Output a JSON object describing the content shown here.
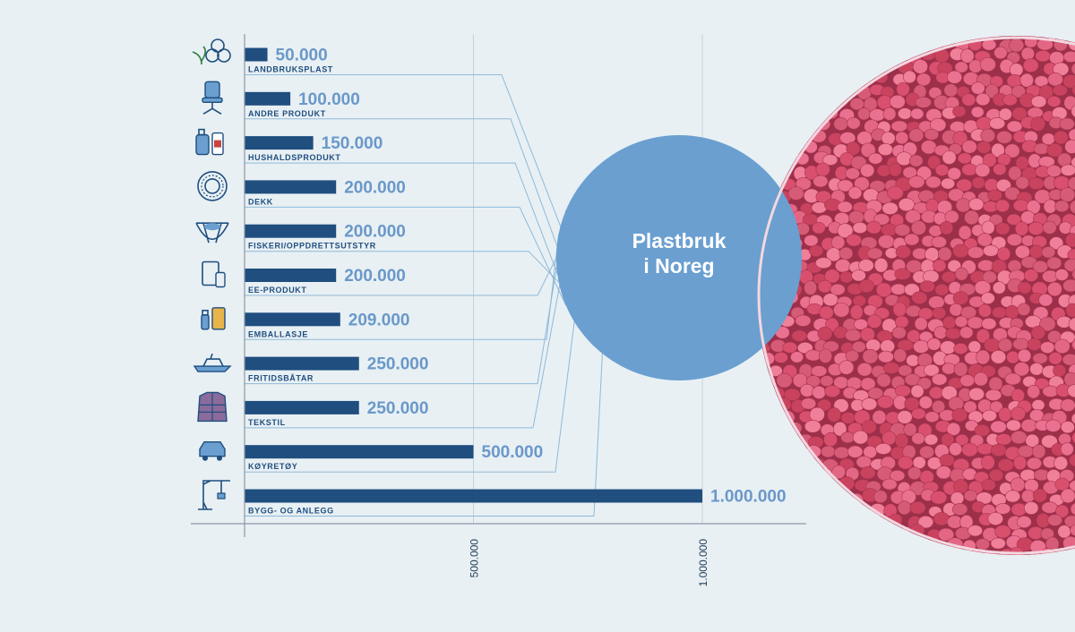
{
  "center_label": {
    "line1": "Plastbruk",
    "line2": "i Noreg"
  },
  "colors": {
    "background": "#e8f0f4",
    "bar": "#1f4e7f",
    "value_text": "#6a98c9",
    "category_text": "#1f4e7f",
    "circle": "#6a9fd0",
    "circle_text": "#ffffff",
    "pellets": "#dc5a78",
    "gridline": "#c3d2dd",
    "connector": "#8fb9d8",
    "axis": "#8a98a4"
  },
  "chart_data": {
    "type": "bar",
    "orientation": "horizontal",
    "categories": [
      "LANDBRUKSPLAST",
      "ANDRE PRODUKT",
      "HUSHALDSPRODUKT",
      "DEKK",
      "FISKERI/OPPDRETTSUTSTYR",
      "EE-PRODUKT",
      "EMBALLASJE",
      "FRITIDSBÅTAR",
      "TEKSTIL",
      "KØYRETØY",
      "BYGG- OG ANLEGG"
    ],
    "values": [
      50000,
      100000,
      150000,
      200000,
      200000,
      200000,
      209000,
      250000,
      250000,
      500000,
      1000000
    ],
    "value_labels": [
      "50.000",
      "100.000",
      "150.000",
      "200.000",
      "200.000",
      "200.000",
      "209.000",
      "250.000",
      "250.000",
      "500.000",
      "1.000.000"
    ],
    "icons": [
      "sprout-pellets-icon",
      "office-chair-icon",
      "detergent-bottles-icon",
      "tire-icon",
      "fishing-net-icon",
      "tablet-phone-icon",
      "packaging-icon",
      "boat-icon",
      "jacket-icon",
      "car-icon",
      "construction-crane-icon"
    ],
    "xticks": [
      500000,
      1000000
    ],
    "xtick_labels": [
      "500.000",
      "1.000.000"
    ],
    "xlim": [
      0,
      1220000
    ],
    "grid": true,
    "title": "",
    "xlabel": "",
    "ylabel": ""
  }
}
